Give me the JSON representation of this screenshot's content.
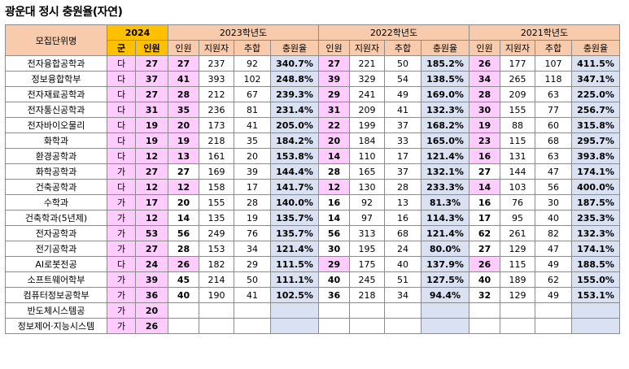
{
  "title": "광운대 정시 충원율(자연)",
  "headers": {
    "unit": "모집단위명",
    "y2024": "2024",
    "y2023": "2023학년도",
    "y2022": "2022학년도",
    "y2021": "2021학년도",
    "group": "군",
    "seats": "인원",
    "applicants": "지원자",
    "added": "추합",
    "rate": "충원율"
  },
  "rows": [
    {
      "name": "전자융합공학과",
      "group": "다",
      "n24": "27",
      "a": [
        "27",
        "237",
        "92",
        "340.7%"
      ],
      "b": [
        "27",
        "221",
        "50",
        "185.2%"
      ],
      "c": [
        "26",
        "177",
        "107",
        "411.5%"
      ]
    },
    {
      "name": "정보융합학부",
      "group": "다",
      "n24": "37",
      "a": [
        "41",
        "393",
        "102",
        "248.8%"
      ],
      "b": [
        "39",
        "329",
        "54",
        "138.5%"
      ],
      "c": [
        "34",
        "265",
        "118",
        "347.1%"
      ]
    },
    {
      "name": "전자재료공학과",
      "group": "다",
      "n24": "27",
      "a": [
        "28",
        "212",
        "67",
        "239.3%"
      ],
      "b": [
        "29",
        "241",
        "49",
        "169.0%"
      ],
      "c": [
        "28",
        "209",
        "63",
        "225.0%"
      ]
    },
    {
      "name": "전자통신공학과",
      "group": "다",
      "n24": "31",
      "a": [
        "35",
        "236",
        "81",
        "231.4%"
      ],
      "b": [
        "31",
        "209",
        "41",
        "132.3%"
      ],
      "c": [
        "30",
        "155",
        "77",
        "256.7%"
      ]
    },
    {
      "name": "전자바이오물리",
      "group": "다",
      "n24": "19",
      "a": [
        "20",
        "173",
        "41",
        "205.0%"
      ],
      "b": [
        "22",
        "199",
        "37",
        "168.2%"
      ],
      "c": [
        "19",
        "88",
        "60",
        "315.8%"
      ]
    },
    {
      "name": "화학과",
      "group": "다",
      "n24": "19",
      "a": [
        "19",
        "218",
        "35",
        "184.2%"
      ],
      "b": [
        "20",
        "184",
        "33",
        "165.0%"
      ],
      "c": [
        "23",
        "115",
        "68",
        "295.7%"
      ]
    },
    {
      "name": "환경공학과",
      "group": "다",
      "n24": "12",
      "a": [
        "13",
        "161",
        "20",
        "153.8%"
      ],
      "b": [
        "14",
        "110",
        "17",
        "121.4%"
      ],
      "c": [
        "16",
        "131",
        "63",
        "393.8%"
      ]
    },
    {
      "name": "화학공학과",
      "group": "가",
      "n24": "27",
      "a": [
        "27",
        "169",
        "39",
        "144.4%"
      ],
      "b": [
        "28",
        "165",
        "37",
        "132.1%"
      ],
      "c": [
        "27",
        "144",
        "47",
        "174.1%"
      ]
    },
    {
      "name": "건축공학과",
      "group": "다",
      "n24": "12",
      "a": [
        "12",
        "158",
        "17",
        "141.7%"
      ],
      "b": [
        "12",
        "130",
        "28",
        "233.3%"
      ],
      "c": [
        "14",
        "103",
        "56",
        "400.0%"
      ]
    },
    {
      "name": "수학과",
      "group": "가",
      "n24": "17",
      "a": [
        "20",
        "155",
        "28",
        "140.0%"
      ],
      "b": [
        "16",
        "92",
        "13",
        "81.3%"
      ],
      "c": [
        "16",
        "76",
        "30",
        "187.5%"
      ]
    },
    {
      "name": "건축학과(5년제)",
      "group": "가",
      "n24": "12",
      "a": [
        "14",
        "135",
        "19",
        "135.7%"
      ],
      "b": [
        "14",
        "97",
        "16",
        "114.3%"
      ],
      "c": [
        "17",
        "95",
        "40",
        "235.3%"
      ]
    },
    {
      "name": "전자공학과",
      "group": "가",
      "n24": "53",
      "a": [
        "56",
        "249",
        "76",
        "135.7%"
      ],
      "b": [
        "56",
        "313",
        "68",
        "121.4%"
      ],
      "c": [
        "62",
        "261",
        "82",
        "132.3%"
      ]
    },
    {
      "name": "전기공학과",
      "group": "가",
      "n24": "27",
      "a": [
        "28",
        "153",
        "34",
        "121.4%"
      ],
      "b": [
        "30",
        "195",
        "24",
        "80.0%"
      ],
      "c": [
        "27",
        "129",
        "47",
        "174.1%"
      ]
    },
    {
      "name": "AI로봇전공",
      "group": "다",
      "n24": "24",
      "a": [
        "26",
        "182",
        "29",
        "111.5%"
      ],
      "b": [
        "29",
        "175",
        "40",
        "137.9%"
      ],
      "c": [
        "26",
        "115",
        "49",
        "188.5%"
      ]
    },
    {
      "name": "소프트웨어학부",
      "group": "가",
      "n24": "39",
      "a": [
        "45",
        "214",
        "50",
        "111.1%"
      ],
      "b": [
        "40",
        "245",
        "51",
        "127.5%"
      ],
      "c": [
        "40",
        "189",
        "62",
        "155.0%"
      ]
    },
    {
      "name": "컴퓨터정보공학부",
      "group": "가",
      "n24": "36",
      "a": [
        "40",
        "190",
        "41",
        "102.5%"
      ],
      "b": [
        "36",
        "218",
        "34",
        "94.4%"
      ],
      "c": [
        "32",
        "129",
        "49",
        "153.1%"
      ]
    },
    {
      "name": "반도체시스템공",
      "group": "가",
      "n24": "20",
      "a": [
        "",
        "",
        "",
        ""
      ],
      "b": [
        "",
        "",
        "",
        ""
      ],
      "c": [
        "",
        "",
        "",
        ""
      ]
    },
    {
      "name": "정보제어·지능시스템",
      "group": "가",
      "n24": "26",
      "a": [
        "",
        "",
        "",
        ""
      ],
      "b": [
        "",
        "",
        "",
        ""
      ],
      "c": [
        "",
        "",
        "",
        ""
      ]
    }
  ]
}
